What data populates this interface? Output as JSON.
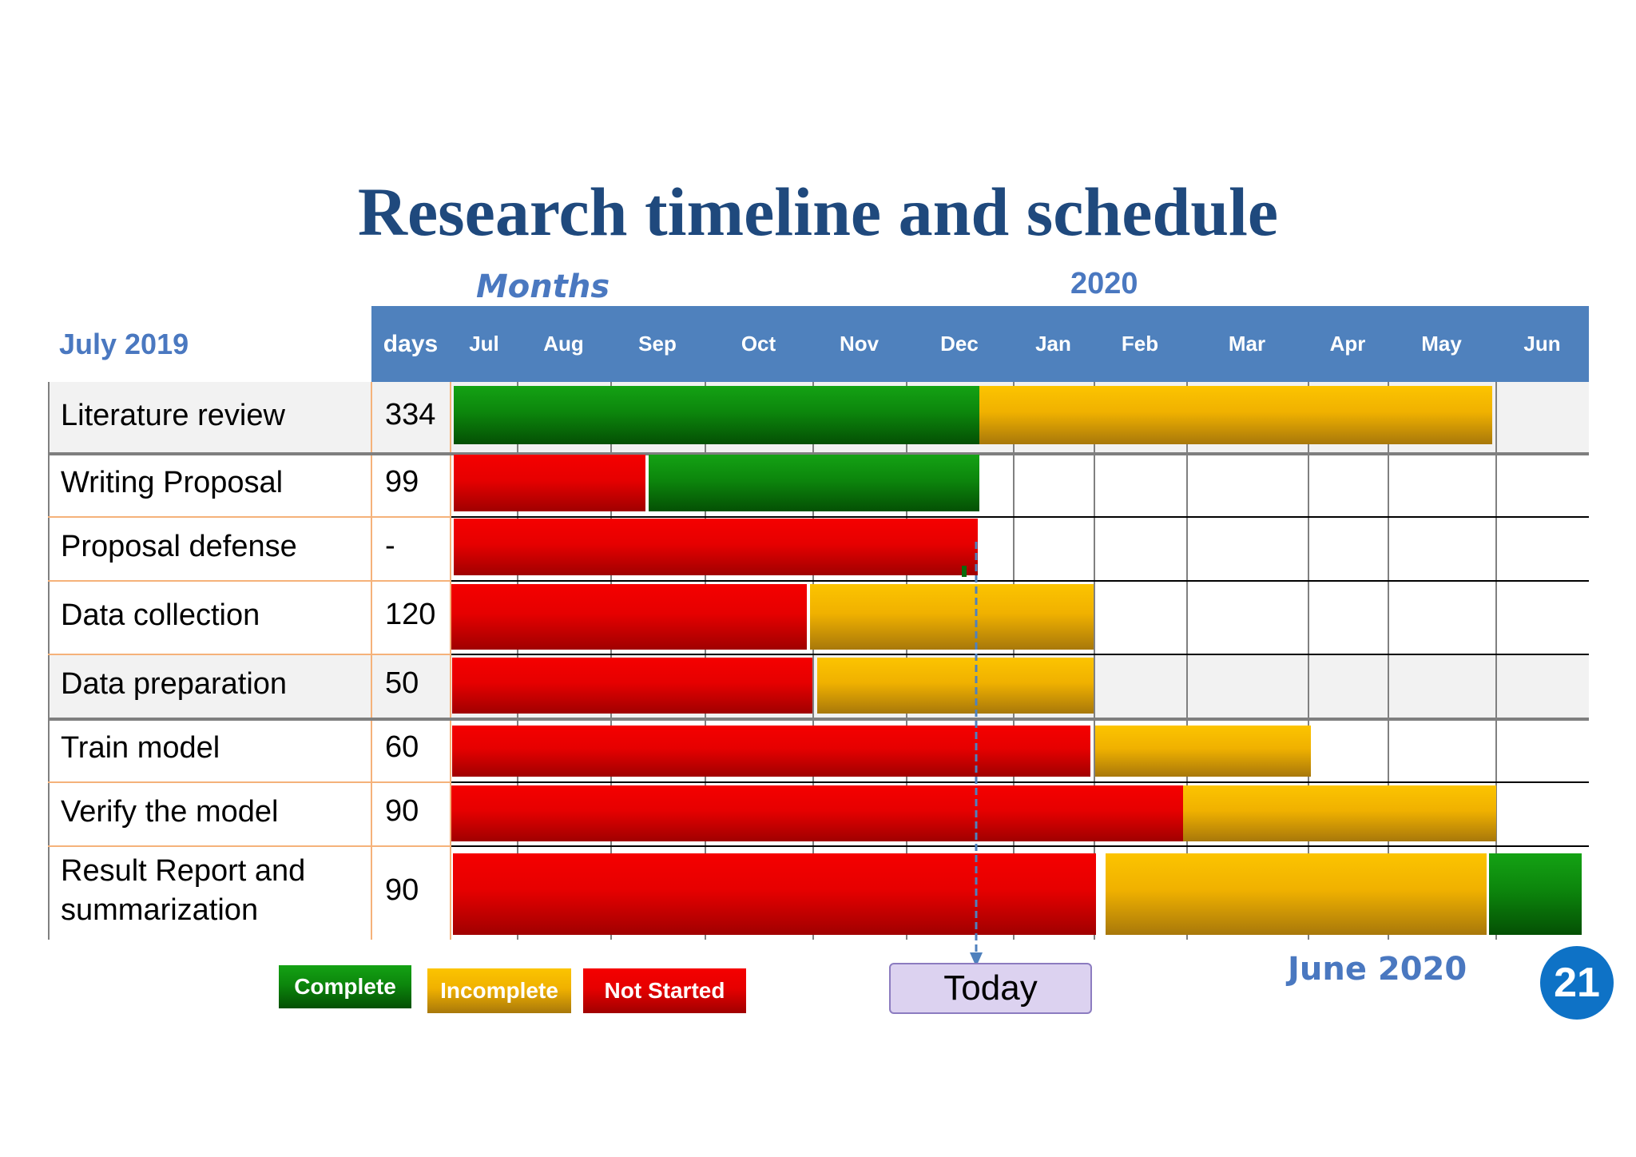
{
  "title": "Research timeline and schedule",
  "months_label": "Months",
  "year_label": "2020",
  "start_label": "July 2019",
  "end_label": "June 2020",
  "days_header": "days",
  "today_label": "Today",
  "page_number": "21",
  "legend": {
    "complete": "Complete",
    "incomplete": "Incomplete",
    "not_started": "Not Started"
  },
  "colors": {
    "complete": "#0c8a0c",
    "incomplete": "#f2b400",
    "not_started": "#e60000",
    "header": "#4f81bd",
    "title": "#1f497d"
  },
  "chart_data": {
    "type": "gantt",
    "title": "Research timeline and schedule",
    "months": [
      "Jul",
      "Aug",
      "Sep",
      "Oct",
      "Nov",
      "Dec",
      "Jan",
      "Feb",
      "Mar",
      "Apr",
      "May",
      "Jun"
    ],
    "today": "mid-Dec 2019",
    "tasks": [
      {
        "name": "Literature review",
        "days": "334",
        "segments": [
          {
            "status": "complete",
            "start": "Jul",
            "end": "Dec"
          },
          {
            "status": "incomplete",
            "start": "Dec",
            "end": "May"
          }
        ]
      },
      {
        "name": "Writing Proposal",
        "days": "99",
        "segments": [
          {
            "status": "not_started",
            "start": "Jul",
            "end": "Aug"
          },
          {
            "status": "complete",
            "start": "Aug",
            "end": "Dec"
          }
        ]
      },
      {
        "name": "Proposal defense",
        "days": "-",
        "segments": [
          {
            "status": "not_started",
            "start": "Jul",
            "end": "Dec"
          }
        ]
      },
      {
        "name": "Data collection",
        "days": "120",
        "segments": [
          {
            "status": "not_started",
            "start": "Jul",
            "end": "Oct"
          },
          {
            "status": "incomplete",
            "start": "Oct",
            "end": "Jan"
          }
        ]
      },
      {
        "name": "Data preparation",
        "days": "50",
        "segments": [
          {
            "status": "not_started",
            "start": "Jul",
            "end": "Oct"
          },
          {
            "status": "incomplete",
            "start": "Oct",
            "end": "Jan"
          }
        ]
      },
      {
        "name": "Train model",
        "days": "60",
        "segments": [
          {
            "status": "not_started",
            "start": "Jul",
            "end": "Jan"
          },
          {
            "status": "incomplete",
            "start": "Jan",
            "end": "Mar"
          }
        ]
      },
      {
        "name": "Verify the model",
        "days": "90",
        "segments": [
          {
            "status": "not_started",
            "start": "Jul",
            "end": "Feb"
          },
          {
            "status": "incomplete",
            "start": "Feb",
            "end": "May"
          }
        ]
      },
      {
        "name": "Result Report and summarization",
        "days": "90",
        "segments": [
          {
            "status": "not_started",
            "start": "Jul",
            "end": "Jan"
          },
          {
            "status": "incomplete",
            "start": "Jan",
            "end": "May"
          },
          {
            "status": "complete",
            "start": "May",
            "end": "Jun"
          }
        ]
      }
    ]
  }
}
